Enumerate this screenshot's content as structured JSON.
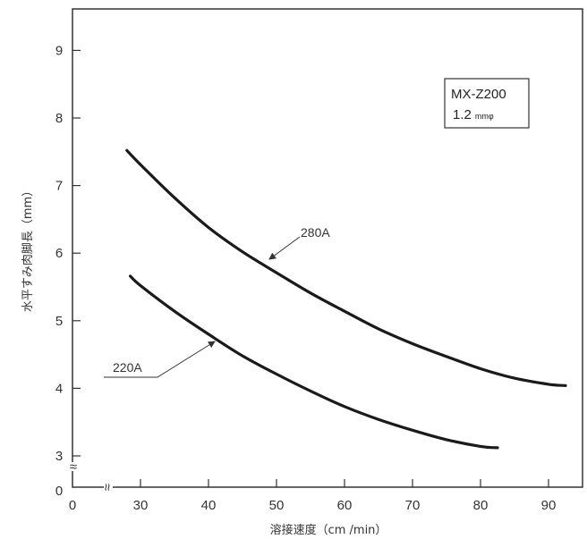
{
  "chart_data": {
    "type": "line",
    "xlabel": "溶接速度（cm /min）",
    "ylabel": "水平すみ肉脚長（mm）",
    "x_ticks": [
      30,
      40,
      50,
      60,
      70,
      80,
      90
    ],
    "x_zero_label": "0",
    "y_ticks": [
      3,
      4,
      5,
      6,
      7,
      8,
      9
    ],
    "y_zero_label": "0",
    "xlim": [
      20,
      95
    ],
    "ylim": [
      3,
      9.7
    ],
    "axis_break": "≈",
    "annotation_box": {
      "line1": "MX-Z200",
      "line2": "1.2",
      "line2_unit": "mmφ"
    },
    "series": [
      {
        "name": "280A",
        "x": [
          28,
          30,
          35,
          40,
          45,
          50,
          55,
          60,
          65,
          70,
          75,
          80,
          85,
          90,
          92.5
        ],
        "y": [
          7.52,
          7.31,
          6.82,
          6.38,
          6.02,
          5.71,
          5.41,
          5.14,
          4.88,
          4.66,
          4.47,
          4.29,
          4.15,
          4.06,
          4.04
        ]
      },
      {
        "name": "220A",
        "x": [
          28.5,
          30,
          35,
          40,
          45,
          50,
          55,
          60,
          65,
          70,
          75,
          80,
          82.5
        ],
        "y": [
          5.66,
          5.52,
          5.14,
          4.8,
          4.48,
          4.21,
          3.96,
          3.73,
          3.54,
          3.38,
          3.24,
          3.14,
          3.12
        ]
      }
    ],
    "callouts": [
      {
        "series": "280A",
        "label": "280A",
        "at_x": 48,
        "at_y": 5.84
      },
      {
        "series": "220A",
        "label": "220A",
        "at_x": 41,
        "at_y": 4.78
      }
    ]
  }
}
